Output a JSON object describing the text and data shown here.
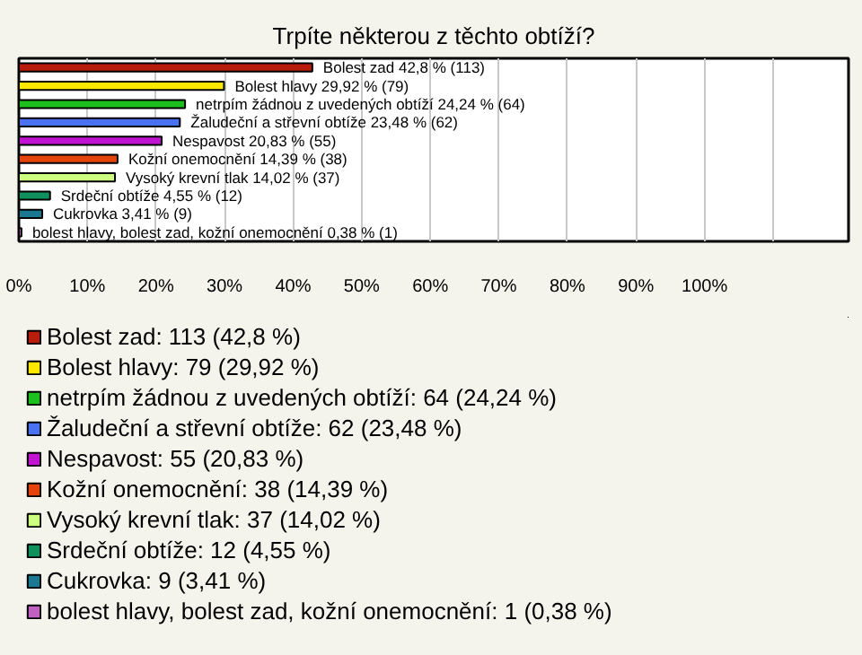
{
  "chart_data": {
    "type": "bar",
    "orientation": "horizontal",
    "title": "Trpíte některou z těchto obtíží?",
    "categories": [
      null,
      null,
      null,
      null,
      null,
      null,
      null,
      null,
      null,
      null
    ],
    "series": [
      {
        "name": "Bolest zad: 113 (42,8 %)",
        "color": "#b81c0c",
        "values": [
          42.8,
          null,
          null,
          null,
          null,
          null,
          null,
          null,
          null,
          null
        ],
        "value_labels": [
          "Bolest zad 42,8 % (113)",
          null,
          null,
          null,
          null,
          null,
          null,
          null,
          null,
          null
        ]
      },
      {
        "name": "Bolest hlavy: 79 (29,92 %)",
        "color": "#ffe800",
        "values": [
          null,
          29.92,
          null,
          null,
          null,
          null,
          null,
          null,
          null,
          null
        ],
        "value_labels": [
          null,
          "Bolest hlavy 29,92 % (79)",
          null,
          null,
          null,
          null,
          null,
          null,
          null,
          null
        ]
      },
      {
        "name": "netrpím žádnou z uvedených obtíží: 64 (24,24 %)",
        "color": "#1cc01c",
        "values": [
          null,
          null,
          24.24,
          null,
          null,
          null,
          null,
          null,
          null,
          null
        ],
        "value_labels": [
          null,
          null,
          "netrpím žádnou z uvedených obtíží 24,24 % (64)",
          null,
          null,
          null,
          null,
          null,
          null,
          null
        ]
      },
      {
        "name": "Žaludeční a střevní obtíže: 62 (23,48 %)",
        "color": "#4a72f0",
        "values": [
          null,
          null,
          null,
          23.48,
          null,
          null,
          null,
          null,
          null,
          null
        ],
        "value_labels": [
          null,
          null,
          null,
          "Žaludeční a střevní obtíže 23,48 % (62)",
          null,
          null,
          null,
          null,
          null,
          null
        ]
      },
      {
        "name": "Nespavost: 55 (20,83 %)",
        "color": "#c014d0",
        "values": [
          null,
          null,
          null,
          null,
          20.83,
          null,
          null,
          null,
          null,
          null
        ],
        "value_labels": [
          null,
          null,
          null,
          null,
          "Nespavost 20,83 % (55)",
          null,
          null,
          null,
          null,
          null
        ]
      },
      {
        "name": "Kožní onemocnění: 38 (14,39 %)",
        "color": "#e4440c",
        "values": [
          null,
          null,
          null,
          null,
          null,
          14.39,
          null,
          null,
          null,
          null
        ],
        "value_labels": [
          null,
          null,
          null,
          null,
          null,
          "Kožní onemocnění 14,39 % (38)",
          null,
          null,
          null,
          null
        ]
      },
      {
        "name": "Vysoký krevní tlak: 37 (14,02 %)",
        "color": "#ccff80",
        "values": [
          null,
          null,
          null,
          null,
          null,
          null,
          14.02,
          null,
          null,
          null
        ],
        "value_labels": [
          null,
          null,
          null,
          null,
          null,
          null,
          "Vysoký krevní tlak 14,02 % (37)",
          null,
          null,
          null
        ]
      },
      {
        "name": "Srdeční obtíže: 12 (4,55 %)",
        "color": "#10905c",
        "values": [
          null,
          null,
          null,
          null,
          null,
          null,
          null,
          4.55,
          null,
          null
        ],
        "value_labels": [
          null,
          null,
          null,
          null,
          null,
          null,
          null,
          "Srdeční obtíže 4,55 % (12)",
          null,
          null
        ]
      },
      {
        "name": "Cukrovka: 9 (3,41 %)",
        "color": "#1c7890",
        "values": [
          null,
          null,
          null,
          null,
          null,
          null,
          null,
          null,
          3.41,
          null
        ],
        "value_labels": [
          null,
          null,
          null,
          null,
          null,
          null,
          null,
          null,
          "Cukrovka 3,41 % (9)",
          null
        ]
      },
      {
        "name": "bolest hlavy, bolest zad, kožní onemocnění: 1 (0,38 %)",
        "color": "#c060c0",
        "values": [
          null,
          null,
          null,
          null,
          null,
          null,
          null,
          null,
          null,
          0.38
        ],
        "value_labels": [
          null,
          null,
          null,
          null,
          null,
          null,
          null,
          null,
          null,
          "bolest hlavy, bolest zad, kožní onemocnění 0,38 % (1)"
        ]
      }
    ],
    "xlim": [
      0,
      121
    ],
    "xticks": [
      {
        "value": 0,
        "label": "0%"
      },
      {
        "value": 10,
        "label": "10%"
      },
      {
        "value": 20,
        "label": "20%"
      },
      {
        "value": 30,
        "label": "30%"
      },
      {
        "value": 40,
        "label": "40%"
      },
      {
        "value": 50,
        "label": "50%"
      },
      {
        "value": 60,
        "label": "60%"
      },
      {
        "value": 70,
        "label": "70%"
      },
      {
        "value": 80,
        "label": "80%"
      },
      {
        "value": 90,
        "label": "90%"
      },
      {
        "value": 100,
        "label": "100%"
      },
      {
        "value": 110,
        "label": null
      }
    ],
    "grid": "x",
    "tick_labels": "x",
    "legend": "bottom"
  }
}
